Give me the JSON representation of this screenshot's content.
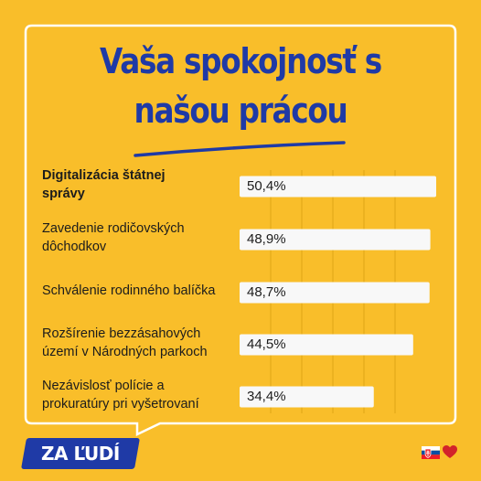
{
  "title_line_1": "Vaša spokojnosť s",
  "title_line_2": "našou prácou",
  "logo_text": "ZA ĽUDÍ",
  "colors": {
    "background": "#f9be2a",
    "title": "#1f3aa6",
    "bar": "#f8f8f8",
    "frame": "#ffffff",
    "heart": "#d2232a"
  },
  "icons": [
    "slovak-flag-icon",
    "heart-icon"
  ],
  "chart_data": {
    "type": "bar",
    "orientation": "horizontal",
    "title": "Vaša spokojnosť s našou prácou",
    "xlim": [
      0,
      55
    ],
    "grid": true,
    "categories": [
      "Digitalizácia štátnej správy",
      "Zavedenie rodičovských dôchodkov",
      "Schválenie rodinného balíčka",
      "Rozšírenie bezzásahových území v Národných parkoch",
      "Nezávislosť polície a prokuratúry pri vyšetrovaní"
    ],
    "values": [
      50.4,
      48.9,
      48.7,
      44.5,
      34.4
    ],
    "value_labels": [
      "50,4%",
      "48,9%",
      "48,7%",
      "44,5%",
      "34,4%"
    ],
    "label_lines": [
      [
        "Digitalizácia štátnej",
        "správy"
      ],
      [
        "Zavedenie rodičovských",
        "dôchodkov"
      ],
      [
        "Schválenie rodinného balíčka"
      ],
      [
        "Rozšírenie bezzásahových",
        "území v Národných parkoch"
      ],
      [
        "Nezávislosť polície a",
        "prokuratúry pri vyšetrovaní"
      ]
    ]
  }
}
